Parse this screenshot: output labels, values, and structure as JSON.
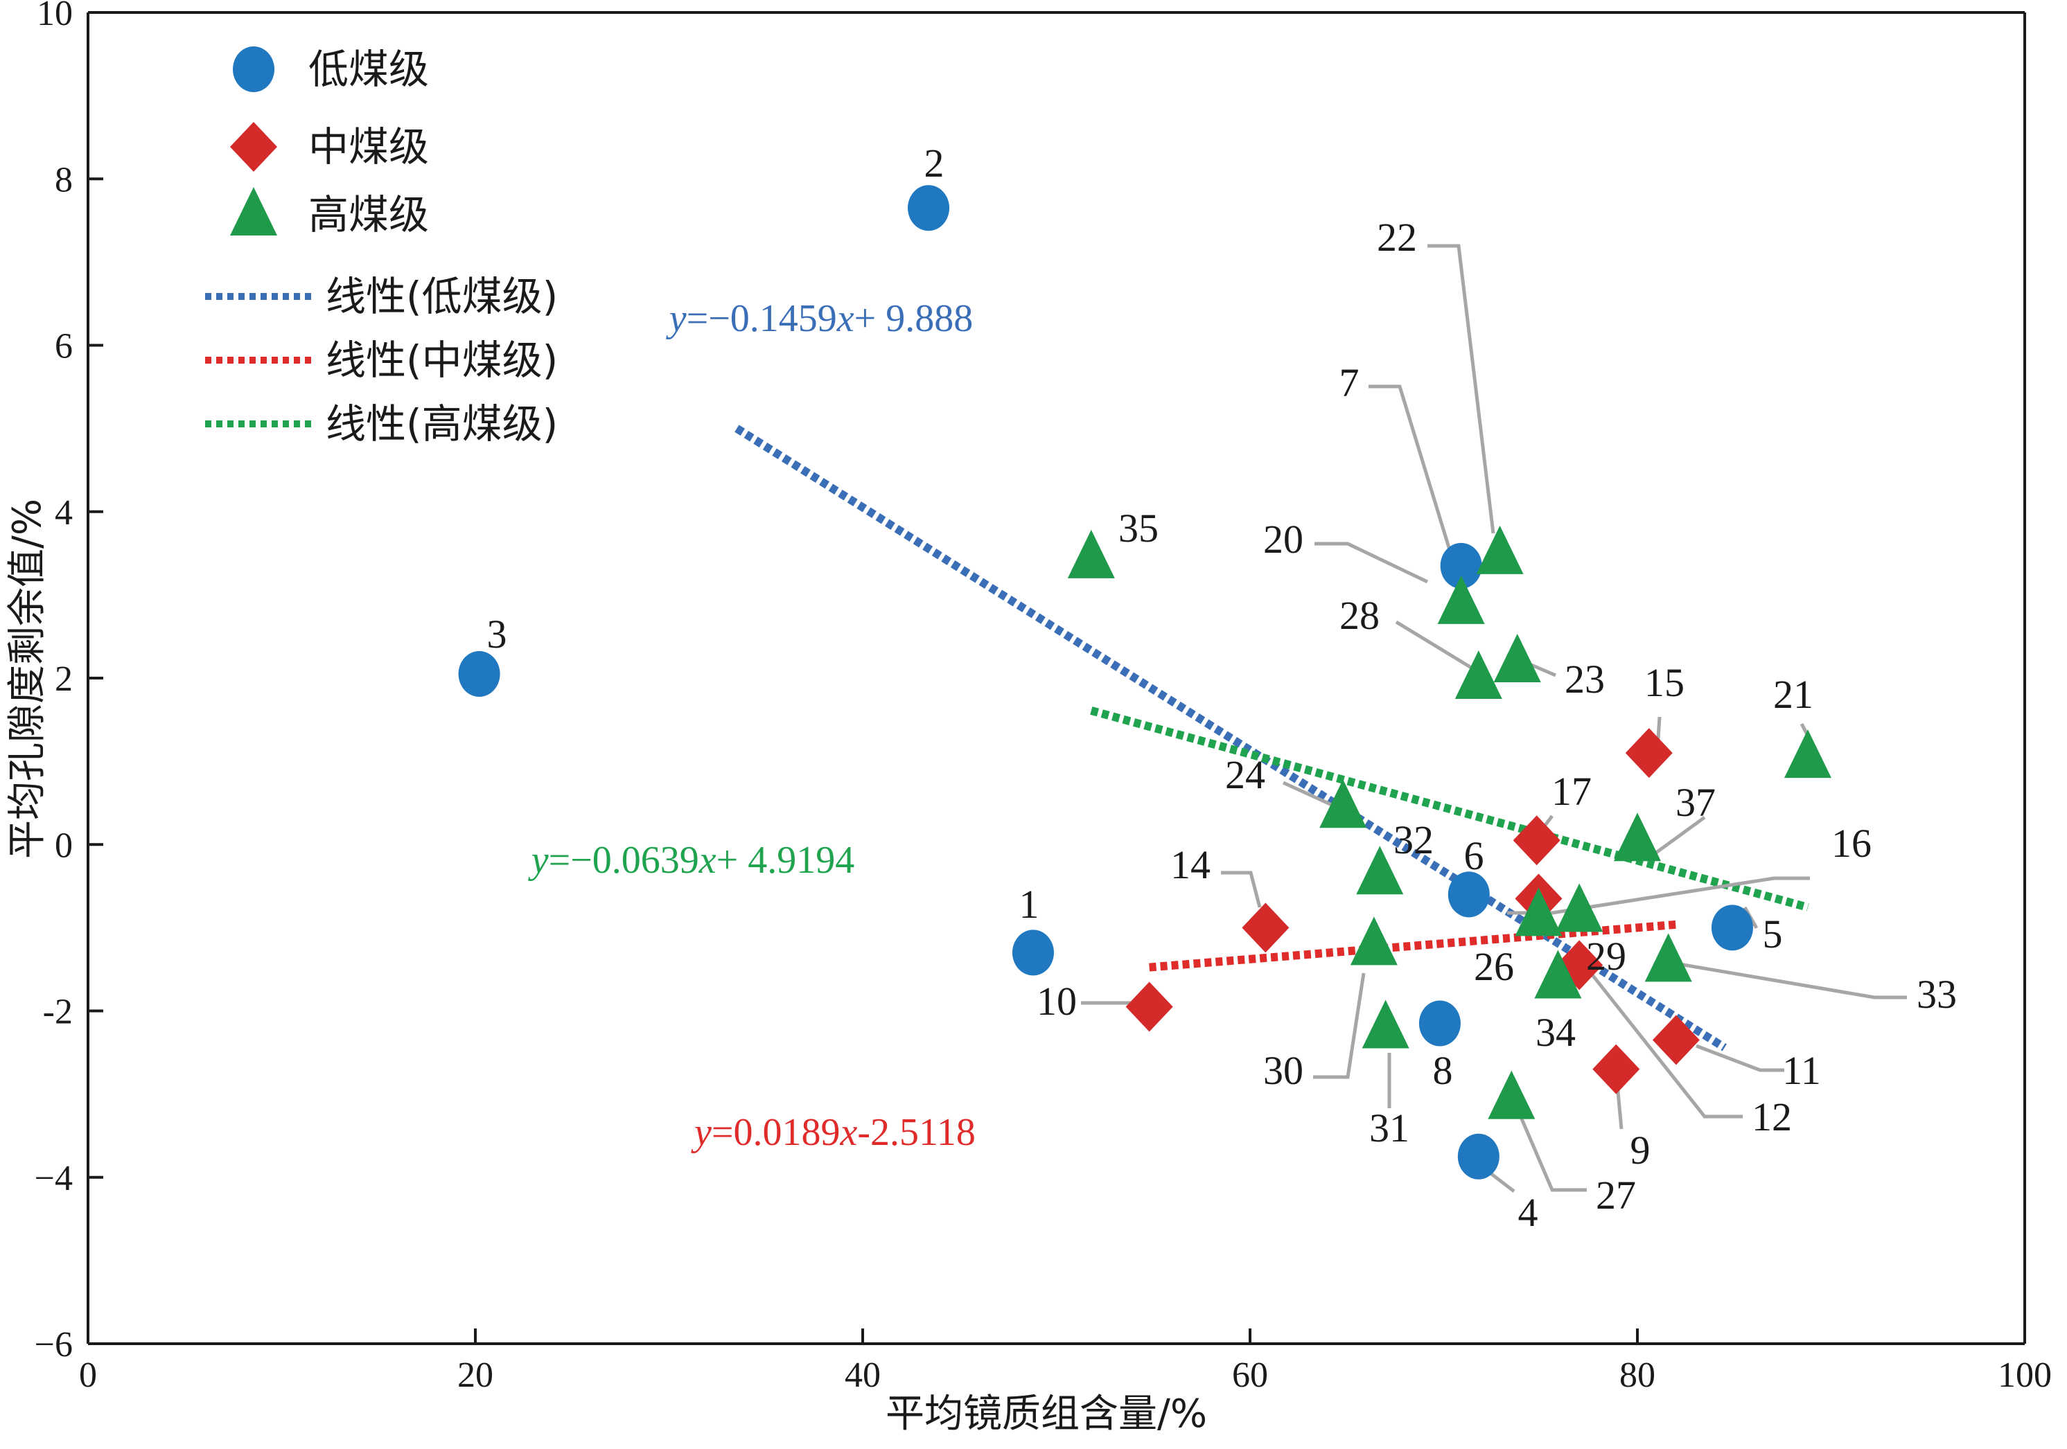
{
  "chart_data": {
    "type": "scatter",
    "xlabel": "平均镜质组含量/%",
    "ylabel": "平均孔隙度剩余值/%",
    "xlim": [
      0,
      100
    ],
    "ylim": [
      -6,
      10
    ],
    "xticks": [
      0,
      20,
      40,
      60,
      80,
      100
    ],
    "yticks": [
      10,
      8,
      6,
      4,
      2,
      0,
      -2,
      -4,
      -6
    ],
    "ytick_labels": [
      "10",
      "8",
      "6",
      "4",
      "2",
      "0",
      "-2",
      "−4",
      "−6"
    ],
    "legend_placement": "top-left",
    "grid": false,
    "series": [
      {
        "name": "低煤级",
        "marker": "circle",
        "color": "#1f78c0",
        "points": [
          {
            "id": "1",
            "x": 48.8,
            "y": -1.3
          },
          {
            "id": "2",
            "x": 43.4,
            "y": 7.65
          },
          {
            "id": "3",
            "x": 20.2,
            "y": 2.05
          },
          {
            "id": "4",
            "x": 71.8,
            "y": -3.75
          },
          {
            "id": "5",
            "x": 84.9,
            "y": -1.0
          },
          {
            "id": "6",
            "x": 71.3,
            "y": -0.6
          },
          {
            "id": "7",
            "x": 70.9,
            "y": 3.35
          },
          {
            "id": "8",
            "x": 69.8,
            "y": -2.15
          }
        ]
      },
      {
        "name": "中煤级",
        "marker": "diamond",
        "color": "#d42a2a",
        "points": [
          {
            "id": "9",
            "x": 78.9,
            "y": -2.7
          },
          {
            "id": "10",
            "x": 54.8,
            "y": -1.95
          },
          {
            "id": "11",
            "x": 82.0,
            "y": -2.35
          },
          {
            "id": "12",
            "x": 77.0,
            "y": -1.45
          },
          {
            "id": "14",
            "x": 60.8,
            "y": -1.0
          },
          {
            "id": "15",
            "x": 80.6,
            "y": 1.1
          },
          {
            "id": "16",
            "x": 74.9,
            "y": -0.65
          },
          {
            "id": "17",
            "x": 74.8,
            "y": 0.05
          }
        ]
      },
      {
        "name": "高煤级",
        "marker": "triangle",
        "color": "#1f9a4a",
        "points": [
          {
            "id": "20",
            "x": 70.9,
            "y": 2.9
          },
          {
            "id": "21",
            "x": 88.8,
            "y": 1.05
          },
          {
            "id": "22",
            "x": 72.9,
            "y": 3.5
          },
          {
            "id": "23",
            "x": 73.8,
            "y": 2.2
          },
          {
            "id": "24",
            "x": 64.8,
            "y": 0.45
          },
          {
            "id": "26",
            "x": 74.9,
            "y": -0.85
          },
          {
            "id": "27",
            "x": 73.5,
            "y": -3.05
          },
          {
            "id": "28",
            "x": 71.8,
            "y": 2.0
          },
          {
            "id": "29",
            "x": 77.0,
            "y": -0.8
          },
          {
            "id": "30",
            "x": 66.4,
            "y": -1.2
          },
          {
            "id": "31",
            "x": 67.0,
            "y": -2.2
          },
          {
            "id": "32",
            "x": 66.7,
            "y": -0.35
          },
          {
            "id": "33",
            "x": 81.6,
            "y": -1.4
          },
          {
            "id": "34",
            "x": 75.9,
            "y": -1.6
          },
          {
            "id": "35",
            "x": 51.8,
            "y": 3.45
          },
          {
            "id": "37",
            "x": 80.0,
            "y": 0.05
          }
        ]
      }
    ],
    "trendlines": [
      {
        "name": "线性(低煤级)",
        "series": "低煤级",
        "slope": -0.1459,
        "intercept": 9.888,
        "x_range": [
          33.5,
          84.5
        ],
        "color": "#3a6fb8",
        "equation": [
          "y",
          "=−0.1459",
          "x",
          "+ 9.888"
        ]
      },
      {
        "name": "线性(中煤级)",
        "series": "中煤级",
        "slope": 0.0189,
        "intercept": -2.5118,
        "x_range": [
          54.8,
          82.0
        ],
        "color": "#e02b2b",
        "equation": [
          "y",
          "=0.0189",
          "x",
          "-2.5118"
        ]
      },
      {
        "name": "线性(高煤级)",
        "series": "高煤级",
        "slope": -0.0639,
        "intercept": 4.9194,
        "x_range": [
          51.8,
          88.8
        ],
        "color": "#1fa34e",
        "equation": [
          "y",
          "=−0.0639",
          "x",
          "+ 4.9194"
        ]
      }
    ]
  }
}
